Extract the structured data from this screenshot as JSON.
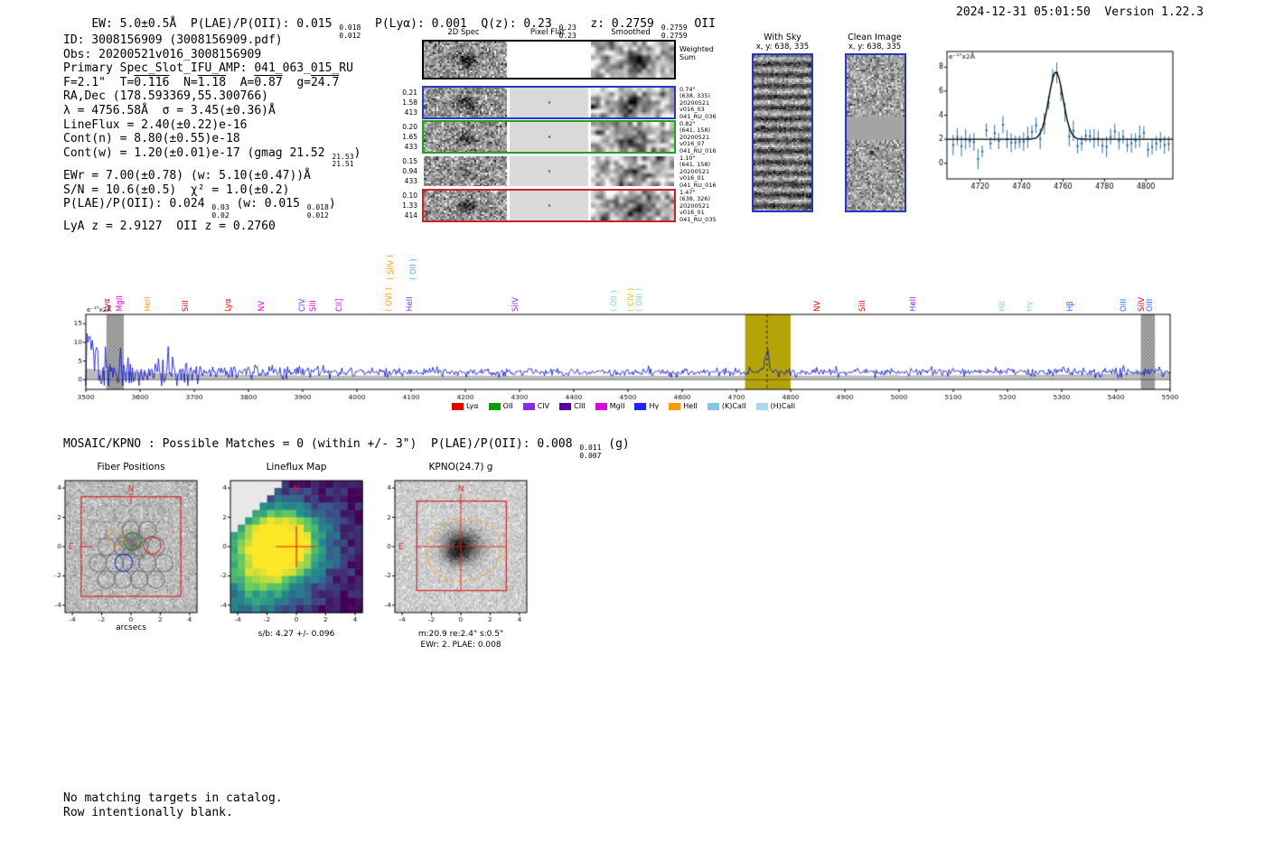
{
  "meta": {
    "right": "2024-12-31 05:01:50  Version 1.22.3"
  },
  "header": {
    "seg1": "EW: 5.0±0.5Å  P(LAE)/P(OII): 0.015 ",
    "plae_hi": "0.018",
    "plae_lo": "0.012",
    "seg2": "  P(Lyα): 0.001  Q(z): 0.23 ",
    "qz_hi": "0.23",
    "qz_lo": "0.23",
    "seg3": "  z: 0.2759 ",
    "z_hi": "0.2759",
    "z_lo": "0.2759",
    "classification": " OII"
  },
  "info": {
    "id": "ID: 3008156909 (3008156909.pdf)",
    "obs": "Obs: 20200521v016_3008156909",
    "primary": "Primary Spec_Slot_IFU_AMP: 041_063_015_RU",
    "seeing": {
      "f": "F=2.1\"  ",
      "tl": "T=",
      "tv": "0.116",
      "s1": "  ",
      "nl": "N=",
      "nv": "1.18",
      "s2": "  ",
      "al": "A=",
      "av": "0.87",
      "s3": "  ",
      "gl": "g=",
      "gv": "24.7"
    },
    "radec": "RA,Dec (178.593369,55.300766)",
    "lambda": "λ = 4756.58Å  σ = 3.45(±0.36)Å",
    "lineflux": "LineFlux = 2.40(±0.22)e-16",
    "contn": "Cont(n) = 8.80(±0.55)e-18",
    "contw": {
      "pre": "Cont(w) = 1.20(±0.01)e-17 (gmag 21.52 ",
      "hi": "21.53",
      "lo": "21.51",
      "post": ")"
    },
    "ewr": "EWr = 7.00(±0.78) (w: 5.10(±0.47))Å",
    "sn": "S/N = 10.6(±0.5)  χ² = 1.0(±0.2)",
    "plae": {
      "pre": "P(LAE)/P(OII): 0.024 ",
      "hi": "0.03",
      "lo": "0.02",
      "mid": " (w: 0.015 ",
      "hi2": "0.018",
      "lo2": "0.012",
      "post": ")"
    },
    "zsol": "LyA z = 2.9127  OII z = 0.2760"
  },
  "cutouts2d": {
    "col_headers": [
      "2D Spec",
      "Pixel Flat",
      "Smoothed"
    ],
    "weighted_label": [
      "Weighted",
      "Sum"
    ],
    "rows": [
      {
        "left": [
          "0.21",
          "1.58",
          "413"
        ],
        "right": [
          "0.74\"",
          "(638, 335)",
          "20200521",
          "v016_03",
          "041_RU_036"
        ],
        "border": "#2a35c8"
      },
      {
        "left": [
          "0.20",
          "1.65",
          "433"
        ],
        "right": [
          "0.82\"",
          "(641, 158)",
          "20200521",
          "v016_07",
          "041_RU_016"
        ],
        "border": "#1fa11f"
      },
      {
        "left": [
          "0.15",
          "0.94",
          "433"
        ],
        "right": [
          "1.10\"",
          "(641, 158)",
          "20200521",
          "v016_01",
          "041_RU_016"
        ],
        "border": "none"
      },
      {
        "left": [
          "0.10",
          "1.33",
          "414"
        ],
        "right": [
          "1.47\"",
          "(638, 326)",
          "20200521",
          "v016_01",
          "041_RU_035"
        ],
        "border": "#cc2222"
      }
    ]
  },
  "sky_panels": {
    "with_sky": {
      "title": "With Sky",
      "coords": "x, y: 638, 335"
    },
    "clean": {
      "title": "Clean Image",
      "coords": "x, y: 638, 335"
    }
  },
  "mosaic": {
    "pre": "MOSAIC/KPNO : Possible Matches = 0 (within +/- 3\")  P(LAE)/P(OII): 0.008 ",
    "hi": "0.011",
    "lo": "0.007",
    "post": " (g)"
  },
  "footer": {
    "line1": "No matching targets in catalog.",
    "line2": "Row intentionally blank."
  },
  "chart_data": [
    {
      "id": "line-fit-plot",
      "type": "scatter",
      "ylabel": "e⁻¹⁷x2Å",
      "xlim": [
        4704,
        4813
      ],
      "ylim": [
        -1.3,
        9.3
      ],
      "xticks": [
        4720,
        4740,
        4760,
        4780,
        4800
      ],
      "yticks": [
        0,
        2,
        4,
        6,
        8
      ],
      "fit": {
        "center": 4756.58,
        "sigma": 3.45,
        "amplitude": 5.6,
        "continuum": 2.0
      },
      "points": {
        "x_start": 4707,
        "x_end": 4811,
        "step": 2,
        "noise_sigma": 0.5,
        "error_bar": 0.7
      },
      "colors": {
        "points": "#2e6da4",
        "fit": "#000000"
      }
    },
    {
      "id": "full-spectrum-plot",
      "type": "line",
      "ylabel": "e⁻¹⁷x2Å",
      "xlim": [
        3500,
        5500
      ],
      "ylim": [
        -2.6,
        17.5
      ],
      "xticks": [
        3500,
        3600,
        3700,
        3800,
        3900,
        4000,
        4100,
        4200,
        4300,
        4400,
        4500,
        4600,
        4700,
        4800,
        4900,
        5000,
        5100,
        5200,
        5300,
        5400,
        5500
      ],
      "yticks": [
        0,
        5,
        10,
        15
      ],
      "line_color": "#0008cc",
      "continuum": 2.05,
      "emission_peak": {
        "center": 4756.58,
        "sigma": 3.45,
        "amplitude": 6.0
      },
      "noise": {
        "base_sigma": 0.55,
        "blue_extra_sigma": 3.2,
        "blue_scale": 150
      },
      "highlight_band": {
        "x0": 4716,
        "x1": 4800,
        "color": "#b5a408"
      },
      "masked_bands": [
        [
          3538,
          3570
        ],
        [
          5446,
          5472
        ]
      ],
      "labels": [
        {
          "text": "Lyα",
          "wave": 3538,
          "color": "#e00000"
        },
        {
          "text": "MgII",
          "wave": 3562,
          "color": "#e000e0"
        },
        {
          "text": "HeII",
          "wave": 3614,
          "color": "#ff9900"
        },
        {
          "text": "SiII",
          "wave": 3683,
          "color": "#e00000"
        },
        {
          "text": "Lyα",
          "wave": 3761,
          "color": "#e00000"
        },
        {
          "text": "NV",
          "wave": 3824,
          "color": "#e000e0"
        },
        {
          "text": "CIV",
          "wave": 3899,
          "color": "#8a2be2"
        },
        {
          "text": "SiII",
          "wave": 3919,
          "color": "#e000e0"
        },
        {
          "text": "CII]",
          "wave": 3966,
          "color": "#e000e0"
        },
        {
          "text": "( OVI )",
          "wave": 4058,
          "color": "#ff9900"
        },
        {
          "text": "HeII",
          "wave": 4097,
          "color": "#8a2be2"
        },
        {
          "text": "( SiIV )",
          "wave": 4062,
          "color": "#ff9900",
          "high": true
        },
        {
          "text": "( OII )",
          "wave": 4104,
          "color": "#4da6ff",
          "high": true
        },
        {
          "text": "SiIV",
          "wave": 4292,
          "color": "#8a2be2"
        },
        {
          "text": "( OII )",
          "wave": 4473,
          "color": "#87ceeb"
        },
        {
          "text": "( CIV )",
          "wave": 4505,
          "color": "#cccc00"
        },
        {
          "text": "( OIII )",
          "wave": 4520,
          "color": "#87ceeb"
        },
        {
          "text": "NV",
          "wave": 4848,
          "color": "#e00000"
        },
        {
          "text": "SiII",
          "wave": 4932,
          "color": "#e00000"
        },
        {
          "text": "HeII",
          "wave": 5025,
          "color": "#8a2be2"
        },
        {
          "text": "Hδ",
          "wave": 5190,
          "color": "#87ceeb"
        },
        {
          "text": "Hγ",
          "wave": 5240,
          "color": "#87ceeb"
        },
        {
          "text": "Hβ",
          "wave": 5315,
          "color": "#3366ff"
        },
        {
          "text": "OIII",
          "wave": 5413,
          "color": "#3366ff"
        },
        {
          "text": "SiIV",
          "wave": 5447,
          "color": "#e00000"
        },
        {
          "text": "OIII",
          "wave": 5462,
          "color": "#3366ff"
        }
      ],
      "legend": [
        {
          "label": "Lyα",
          "color": "#e00000"
        },
        {
          "label": "OII",
          "color": "#00a000"
        },
        {
          "label": "CIV",
          "color": "#8a2be2"
        },
        {
          "label": "CIII",
          "color": "#5500aa"
        },
        {
          "label": "MgII",
          "color": "#e000e0"
        },
        {
          "label": "Hγ",
          "color": "#2222ff"
        },
        {
          "label": "HeII",
          "color": "#ff9900"
        },
        {
          "label": "(K)CaII",
          "color": "#7ec8e3"
        },
        {
          "label": "(H)CaII",
          "color": "#a8d8f0"
        }
      ]
    },
    {
      "id": "fiber-positions-plot",
      "type": "scatter",
      "title": "Fiber Positions",
      "xlabel": "arcsecs",
      "ticks": [
        -4,
        -2,
        0,
        2,
        4
      ],
      "range": [
        -4.5,
        4.5
      ],
      "red_box": [
        -3.4,
        -3.4,
        3.4,
        3.4
      ],
      "fiber_radius": 0.6,
      "fibers_dashed": [
        [
          -1.69,
          2.25
        ],
        [
          -0.56,
          2.25
        ],
        [
          0.56,
          2.25
        ],
        [
          1.69,
          2.25
        ],
        [
          -2.25,
          1.125
        ],
        [
          -1.125,
          1.125
        ],
        [
          2.25,
          1.125
        ]
      ],
      "fibers_solid": [
        [
          0,
          1.125
        ],
        [
          1.125,
          1.125
        ],
        [
          -1.69,
          0
        ],
        [
          -0.56,
          0
        ],
        [
          0.56,
          0
        ],
        [
          1.69,
          0
        ],
        [
          -2.25,
          -1.125
        ],
        [
          -1.125,
          -1.125
        ],
        [
          0,
          -1.125
        ],
        [
          1.125,
          -1.125
        ],
        [
          2.25,
          -1.125
        ],
        [
          -1.69,
          -2.25
        ],
        [
          -0.56,
          -2.25
        ],
        [
          0.56,
          -2.25
        ],
        [
          1.69,
          -2.25
        ]
      ],
      "special_fibers": [
        {
          "x": 0.1,
          "y": 0.35,
          "color": "#1a8f1a"
        },
        {
          "x": -0.5,
          "y": -1.1,
          "color": "#2233cc"
        },
        {
          "x": 1.45,
          "y": 0.1,
          "color": "#cc3333"
        }
      ],
      "aperture": {
        "x": -1.0,
        "y": 0.55,
        "r": 0.5,
        "color": "#ff9900"
      },
      "compass": {
        "n": "N",
        "e": "E",
        "color": "#dd2222"
      }
    },
    {
      "id": "lineflux-map-plot",
      "type": "heatmap",
      "title": "Lineflux Map",
      "caption": "s/b: 4.27 +/- 0.096",
      "ticks": [
        -4,
        -2,
        0,
        2,
        4
      ],
      "range": [
        -4.5,
        4.5
      ],
      "colormap": "viridis",
      "masked_corner": "top-left",
      "crosshair_color": "#dd2222",
      "compass": {
        "n": "N",
        "color": "#dd2222"
      }
    },
    {
      "id": "kpno-cutout-plot",
      "type": "image",
      "title": "KPNO(24.7) g",
      "caption1": "m:20.9 re:2.4\" s:0.5\"",
      "caption2": "EWr: 2. PLAE: 0.008",
      "ticks": [
        -4,
        -2,
        0,
        2,
        4
      ],
      "range": [
        -4.5,
        4.5
      ],
      "red_box": [
        -3.0,
        -3.0,
        3.1,
        3.1
      ],
      "ellipse": {
        "x": 0.2,
        "y": -0.25,
        "rx": 2.55,
        "ry": 2.1,
        "angle_deg": -12,
        "color": "#ffaa22"
      },
      "crosshair_color": "#dd2222",
      "compass": {
        "n": "N",
        "e": "E",
        "color": "#dd2222"
      }
    }
  ]
}
